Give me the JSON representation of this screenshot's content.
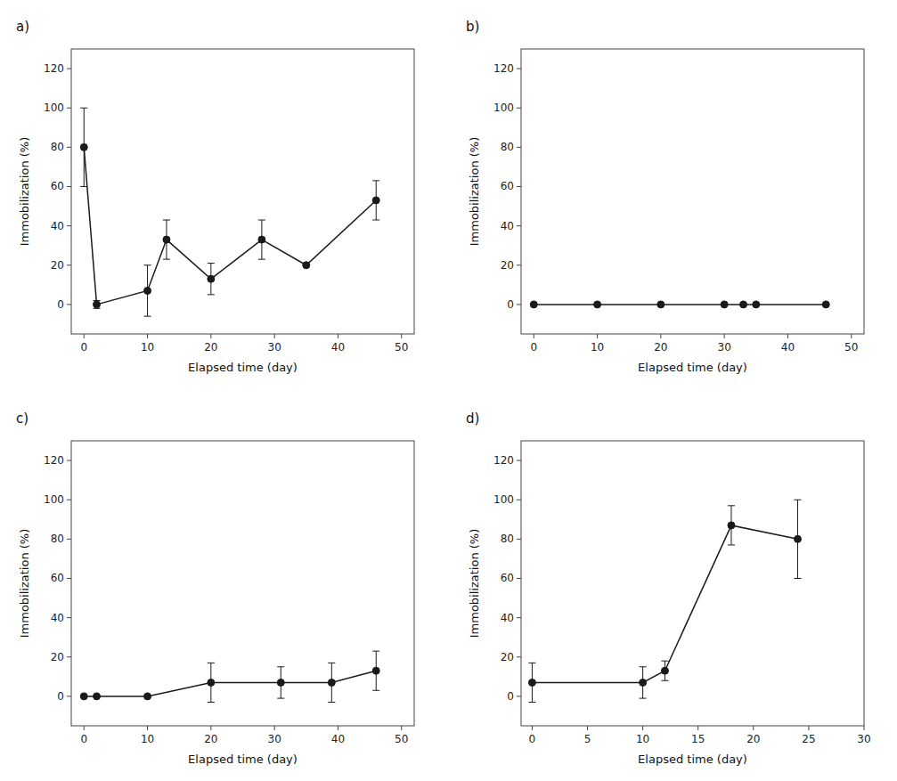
{
  "chart_data": [
    {
      "type": "line",
      "title": "a)",
      "xlabel": "Elapsed time (day)",
      "ylabel": "Immobilization (%)",
      "x": [
        0,
        2,
        10,
        13,
        20,
        28,
        35,
        46
      ],
      "values": [
        80,
        0,
        7,
        33,
        13,
        33,
        20,
        53
      ],
      "yerr": [
        20,
        2,
        13,
        10,
        8,
        10,
        0,
        10
      ],
      "xlim": [
        -2,
        52
      ],
      "ylim": [
        -15,
        130
      ],
      "xticks": [
        0,
        10,
        20,
        30,
        40,
        50
      ],
      "yticks": [
        0,
        20,
        40,
        60,
        80,
        100,
        120
      ],
      "color": "#1a1a1a",
      "marker": "circle",
      "line_style": "solid",
      "grid": false
    },
    {
      "type": "line",
      "title": "b)",
      "xlabel": "Elapsed time (day)",
      "ylabel": "Immobilization (%)",
      "x": [
        0,
        10,
        20,
        30,
        33,
        35,
        46
      ],
      "values": [
        0,
        0,
        0,
        0,
        0,
        0,
        0
      ],
      "yerr": [
        0,
        0,
        0,
        0,
        0,
        0,
        0
      ],
      "xlim": [
        -2,
        52
      ],
      "ylim": [
        -15,
        130
      ],
      "xticks": [
        0,
        10,
        20,
        30,
        40,
        50
      ],
      "yticks": [
        0,
        20,
        40,
        60,
        80,
        100,
        120
      ],
      "color": "#1a1a1a",
      "marker": "circle",
      "line_style": "solid",
      "grid": false
    },
    {
      "type": "line",
      "title": "c)",
      "xlabel": "Elapsed time (day)",
      "ylabel": "Immobilization (%)",
      "x": [
        0,
        2,
        10,
        20,
        31,
        39,
        46
      ],
      "values": [
        0,
        0,
        0,
        7,
        7,
        7,
        13
      ],
      "yerr": [
        0,
        0,
        0,
        10,
        8,
        10,
        10
      ],
      "xlim": [
        -2,
        52
      ],
      "ylim": [
        -15,
        130
      ],
      "xticks": [
        0,
        10,
        20,
        30,
        40,
        50
      ],
      "yticks": [
        0,
        20,
        40,
        60,
        80,
        100,
        120
      ],
      "color": "#1a1a1a",
      "marker": "circle",
      "line_style": "solid",
      "grid": false
    },
    {
      "type": "line",
      "title": "d)",
      "xlabel": "Elapsed time (day)",
      "ylabel": "Immobilization (%)",
      "x": [
        0,
        10,
        12,
        18,
        24
      ],
      "values": [
        7,
        7,
        13,
        87,
        80
      ],
      "yerr": [
        10,
        8,
        5,
        10,
        20
      ],
      "xlim": [
        -1,
        30
      ],
      "ylim": [
        -15,
        130
      ],
      "xticks": [
        0,
        5,
        10,
        15,
        20,
        25,
        30
      ],
      "yticks": [
        0,
        20,
        40,
        60,
        80,
        100,
        120
      ],
      "color": "#1a1a1a",
      "marker": "circle",
      "line_style": "solid",
      "grid": false
    }
  ]
}
